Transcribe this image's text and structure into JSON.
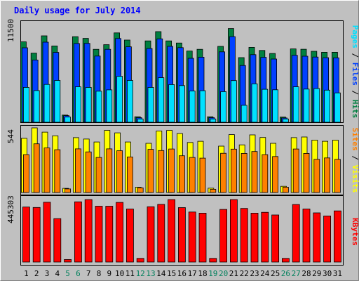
{
  "chart_data": {
    "title": "Daily usage for July 2014",
    "days": [
      "1",
      "2",
      "3",
      "4",
      "5",
      "6",
      "7",
      "8",
      "9",
      "10",
      "11",
      "12",
      "13",
      "14",
      "15",
      "16",
      "17",
      "18",
      "19",
      "20",
      "21",
      "22",
      "23",
      "24",
      "25",
      "26",
      "27",
      "28",
      "29",
      "30",
      "31"
    ],
    "weekend_days": [
      "5",
      "6",
      "12",
      "13",
      "19",
      "20",
      "26",
      "27"
    ],
    "panels": [
      {
        "id": "hits-files-pages",
        "type": "bar",
        "max_label": "11500",
        "ylim": [
          0,
          11500
        ],
        "series": [
          {
            "name": "Hits",
            "color": "#008040",
            "values": [
              9540,
              8200,
              10250,
              9050,
              850,
              10150,
              9950,
              8650,
              9200,
              10600,
              9750,
              650,
              9650,
              10750,
              9650,
              9400,
              8450,
              8650,
              650,
              9000,
              11120,
              7670,
              8880,
              8520,
              8160,
              620,
              8700,
              8660,
              8420,
              8300,
              8300
            ]
          },
          {
            "name": "Files",
            "color": "#0040ff",
            "values": [
              8830,
              7380,
              9500,
              8280,
              780,
              9340,
              9360,
              7850,
              8650,
              9930,
              8950,
              540,
              8750,
              9890,
              9000,
              8850,
              7580,
              7720,
              540,
              8350,
              10160,
              6730,
              8020,
              7700,
              7500,
              510,
              7940,
              7830,
              7730,
              7660,
              7640
            ]
          },
          {
            "name": "Pages",
            "color": "#00e0ff",
            "values": [
              4130,
              3760,
              4480,
              4960,
              620,
              4200,
              4130,
              3680,
              3840,
              5450,
              4960,
              390,
              4130,
              5280,
              4470,
              4350,
              3710,
              3740,
              390,
              3630,
              4940,
              2010,
              4560,
              3910,
              3850,
              390,
              4200,
              3930,
              4000,
              3810,
              3480
            ]
          }
        ],
        "axis_labels": [
          {
            "text": "Hits",
            "color": "#008040"
          },
          {
            "text": "Files",
            "color": "#0040ff"
          },
          {
            "text": "Pages",
            "color": "#00e0ff"
          }
        ]
      },
      {
        "id": "visits-sites",
        "type": "bar",
        "max_label": "544",
        "ylim": [
          0,
          544
        ],
        "series": [
          {
            "name": "Visits",
            "color": "#ffff00",
            "values": [
              456,
              544,
              508,
              477,
              35,
              462,
              450,
              425,
              523,
              502,
              425,
              45,
              414,
              518,
              523,
              496,
              421,
              431,
              36,
              390,
              487,
              401,
              485,
              463,
              414,
              52,
              462,
              467,
              441,
              431,
              441
            ]
          },
          {
            "name": "Sites",
            "color": "#ff8000",
            "values": [
              319,
              410,
              375,
              360,
              30,
              367,
              342,
              295,
              367,
              352,
              299,
              39,
              363,
              353,
              366,
              309,
              295,
              289,
              27,
              330,
              365,
              329,
              345,
              319,
              303,
              45,
              366,
              329,
              279,
              291,
              279
            ]
          }
        ],
        "axis_labels": [
          {
            "text": "Visits",
            "color": "#ffff00"
          },
          {
            "text": "Sites",
            "color": "#ff8000"
          }
        ]
      },
      {
        "id": "kbytes",
        "type": "bar",
        "max_label": "445303",
        "ylim": [
          0,
          445303
        ],
        "series": [
          {
            "name": "KBytes",
            "color": "#ff0000",
            "values": [
              392000,
              389000,
              426000,
              309000,
              18000,
              429000,
              445000,
              398000,
              398000,
              425000,
              378000,
              26000,
              394000,
              411000,
              445000,
              388000,
              356000,
              348000,
              26000,
              375000,
              445000,
              382000,
              348000,
              354000,
              335000,
              26000,
              410000,
              378000,
              350000,
              328000,
              364000
            ]
          }
        ],
        "axis_labels": [
          {
            "text": "KBytes",
            "color": "#ff0000"
          }
        ]
      }
    ]
  },
  "colors": {
    "title": "#0000ff",
    "plot_bg": "#c0c0c0",
    "weekday_label": "#000000",
    "weekend_label": "#00805c",
    "separator": "#000000"
  }
}
